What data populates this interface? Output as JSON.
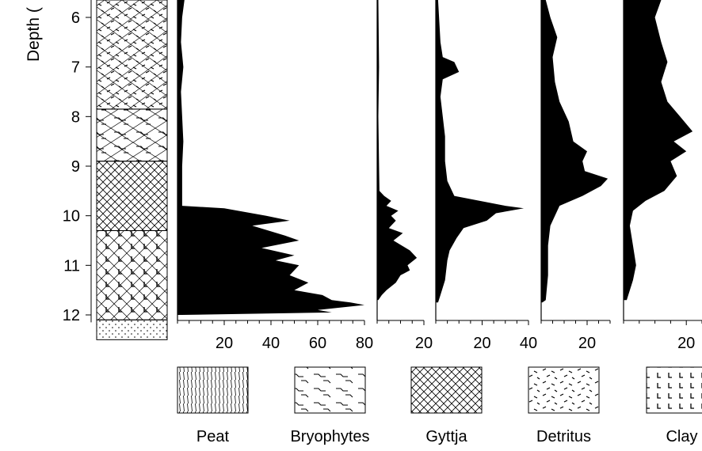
{
  "chart_data": {
    "type": "area",
    "title": "",
    "ylabel": "Depth (",
    "ylim": [
      5.6,
      12.15
    ],
    "y_ticks": [
      6,
      7,
      8,
      9,
      10,
      11,
      12
    ],
    "grid": false,
    "orientation": "vertical-depth-profile",
    "lithology_column": [
      {
        "from": 5.6,
        "to": 7.85,
        "type": "Detritus"
      },
      {
        "from": 7.85,
        "to": 8.9,
        "type": "Bryophytes"
      },
      {
        "from": 8.9,
        "to": 10.3,
        "type": "Gyttja"
      },
      {
        "from": 10.3,
        "to": 12.1,
        "type": "Clay"
      },
      {
        "from": 12.1,
        "to": 12.5,
        "type": "Sand"
      }
    ],
    "panels": [
      {
        "name": "",
        "xlim": [
          0,
          80
        ],
        "x_ticks": [
          20,
          40,
          60,
          80
        ],
        "profile": [
          {
            "depth": 5.6,
            "value": 3
          },
          {
            "depth": 6.0,
            "value": 2
          },
          {
            "depth": 6.5,
            "value": 1.5
          },
          {
            "depth": 7.0,
            "value": 2.5
          },
          {
            "depth": 7.5,
            "value": 1.5
          },
          {
            "depth": 8.0,
            "value": 2
          },
          {
            "depth": 8.5,
            "value": 2.5
          },
          {
            "depth": 9.0,
            "value": 2
          },
          {
            "depth": 9.4,
            "value": 2
          },
          {
            "depth": 9.8,
            "value": 2
          },
          {
            "depth": 9.85,
            "value": 20
          },
          {
            "depth": 10.0,
            "value": 38
          },
          {
            "depth": 10.1,
            "value": 48
          },
          {
            "depth": 10.2,
            "value": 32
          },
          {
            "depth": 10.4,
            "value": 46
          },
          {
            "depth": 10.5,
            "value": 52
          },
          {
            "depth": 10.65,
            "value": 36
          },
          {
            "depth": 10.8,
            "value": 50
          },
          {
            "depth": 10.9,
            "value": 42
          },
          {
            "depth": 11.0,
            "value": 52
          },
          {
            "depth": 11.2,
            "value": 48
          },
          {
            "depth": 11.35,
            "value": 56
          },
          {
            "depth": 11.5,
            "value": 50
          },
          {
            "depth": 11.6,
            "value": 62
          },
          {
            "depth": 11.7,
            "value": 66
          },
          {
            "depth": 11.75,
            "value": 74
          },
          {
            "depth": 11.8,
            "value": 80
          },
          {
            "depth": 11.85,
            "value": 70
          },
          {
            "depth": 11.9,
            "value": 60
          },
          {
            "depth": 11.95,
            "value": 66
          },
          {
            "depth": 12.0,
            "value": 2
          }
        ]
      },
      {
        "name": "",
        "xlim": [
          0,
          20
        ],
        "x_ticks": [
          20
        ],
        "profile": [
          {
            "depth": 5.6,
            "value": 0.5
          },
          {
            "depth": 7.0,
            "value": 0.8
          },
          {
            "depth": 8.0,
            "value": 0.5
          },
          {
            "depth": 9.0,
            "value": 0.8
          },
          {
            "depth": 9.5,
            "value": 1
          },
          {
            "depth": 9.6,
            "value": 3
          },
          {
            "depth": 9.7,
            "value": 6
          },
          {
            "depth": 9.8,
            "value": 4
          },
          {
            "depth": 9.9,
            "value": 9
          },
          {
            "depth": 10.0,
            "value": 6
          },
          {
            "depth": 10.1,
            "value": 8
          },
          {
            "depth": 10.25,
            "value": 5
          },
          {
            "depth": 10.35,
            "value": 11
          },
          {
            "depth": 10.5,
            "value": 7
          },
          {
            "depth": 10.7,
            "value": 14
          },
          {
            "depth": 10.85,
            "value": 17
          },
          {
            "depth": 11.0,
            "value": 13
          },
          {
            "depth": 11.1,
            "value": 14
          },
          {
            "depth": 11.2,
            "value": 10
          },
          {
            "depth": 11.35,
            "value": 8
          },
          {
            "depth": 11.5,
            "value": 4
          },
          {
            "depth": 11.6,
            "value": 2
          },
          {
            "depth": 11.7,
            "value": 0.5
          }
        ]
      },
      {
        "name": "",
        "xlim": [
          0,
          40
        ],
        "x_ticks": [
          20,
          40
        ],
        "profile": [
          {
            "depth": 5.6,
            "value": 1
          },
          {
            "depth": 6.5,
            "value": 2
          },
          {
            "depth": 6.8,
            "value": 3
          },
          {
            "depth": 6.9,
            "value": 8
          },
          {
            "depth": 7.1,
            "value": 10
          },
          {
            "depth": 7.25,
            "value": 3
          },
          {
            "depth": 7.6,
            "value": 2
          },
          {
            "depth": 8.0,
            "value": 3
          },
          {
            "depth": 8.4,
            "value": 4
          },
          {
            "depth": 8.9,
            "value": 4
          },
          {
            "depth": 9.3,
            "value": 5
          },
          {
            "depth": 9.6,
            "value": 8
          },
          {
            "depth": 9.8,
            "value": 30
          },
          {
            "depth": 9.85,
            "value": 38
          },
          {
            "depth": 9.95,
            "value": 26
          },
          {
            "depth": 10.1,
            "value": 22
          },
          {
            "depth": 10.25,
            "value": 12
          },
          {
            "depth": 10.45,
            "value": 9
          },
          {
            "depth": 10.7,
            "value": 6
          },
          {
            "depth": 10.9,
            "value": 5
          },
          {
            "depth": 11.3,
            "value": 4
          },
          {
            "depth": 11.6,
            "value": 2
          },
          {
            "depth": 11.75,
            "value": 1
          }
        ]
      },
      {
        "name": "",
        "xlim": [
          0,
          30
        ],
        "x_ticks": [
          20
        ],
        "profile": [
          {
            "depth": 5.6,
            "value": 2
          },
          {
            "depth": 6.0,
            "value": 4
          },
          {
            "depth": 6.4,
            "value": 7
          },
          {
            "depth": 6.8,
            "value": 5
          },
          {
            "depth": 7.3,
            "value": 6
          },
          {
            "depth": 7.7,
            "value": 8
          },
          {
            "depth": 8.1,
            "value": 12
          },
          {
            "depth": 8.5,
            "value": 14
          },
          {
            "depth": 8.7,
            "value": 20
          },
          {
            "depth": 8.9,
            "value": 18
          },
          {
            "depth": 9.1,
            "value": 19
          },
          {
            "depth": 9.25,
            "value": 29
          },
          {
            "depth": 9.4,
            "value": 26
          },
          {
            "depth": 9.6,
            "value": 18
          },
          {
            "depth": 9.8,
            "value": 8
          },
          {
            "depth": 10.2,
            "value": 4
          },
          {
            "depth": 10.6,
            "value": 3
          },
          {
            "depth": 11.2,
            "value": 3
          },
          {
            "depth": 11.7,
            "value": 2
          },
          {
            "depth": 11.75,
            "value": 0.5
          }
        ]
      },
      {
        "name": "",
        "xlim": [
          0,
          25
        ],
        "x_ticks": [
          20
        ],
        "profile": [
          {
            "depth": 5.6,
            "value": 12
          },
          {
            "depth": 6.0,
            "value": 10
          },
          {
            "depth": 6.5,
            "value": 12
          },
          {
            "depth": 6.9,
            "value": 14
          },
          {
            "depth": 7.3,
            "value": 12
          },
          {
            "depth": 7.7,
            "value": 14
          },
          {
            "depth": 8.0,
            "value": 18
          },
          {
            "depth": 8.3,
            "value": 22
          },
          {
            "depth": 8.5,
            "value": 16
          },
          {
            "depth": 8.7,
            "value": 20
          },
          {
            "depth": 8.9,
            "value": 15
          },
          {
            "depth": 9.2,
            "value": 17
          },
          {
            "depth": 9.5,
            "value": 13
          },
          {
            "depth": 9.7,
            "value": 7
          },
          {
            "depth": 9.9,
            "value": 3
          },
          {
            "depth": 10.2,
            "value": 2
          },
          {
            "depth": 10.6,
            "value": 3
          },
          {
            "depth": 11.0,
            "value": 4
          },
          {
            "depth": 11.3,
            "value": 3
          },
          {
            "depth": 11.7,
            "value": 1
          }
        ]
      }
    ],
    "legend": {
      "placement": "bottom",
      "items": [
        {
          "label": "Peat",
          "pattern": "peat"
        },
        {
          "label": "Bryophytes",
          "pattern": "bryophytes"
        },
        {
          "label": "Gyttja",
          "pattern": "gyttja"
        },
        {
          "label": "Detritus",
          "pattern": "detritus"
        },
        {
          "label": "Clay",
          "pattern": "clay"
        }
      ]
    },
    "colors": {
      "fill": "#000000",
      "axis": "#000000",
      "background": "#ffffff"
    }
  }
}
